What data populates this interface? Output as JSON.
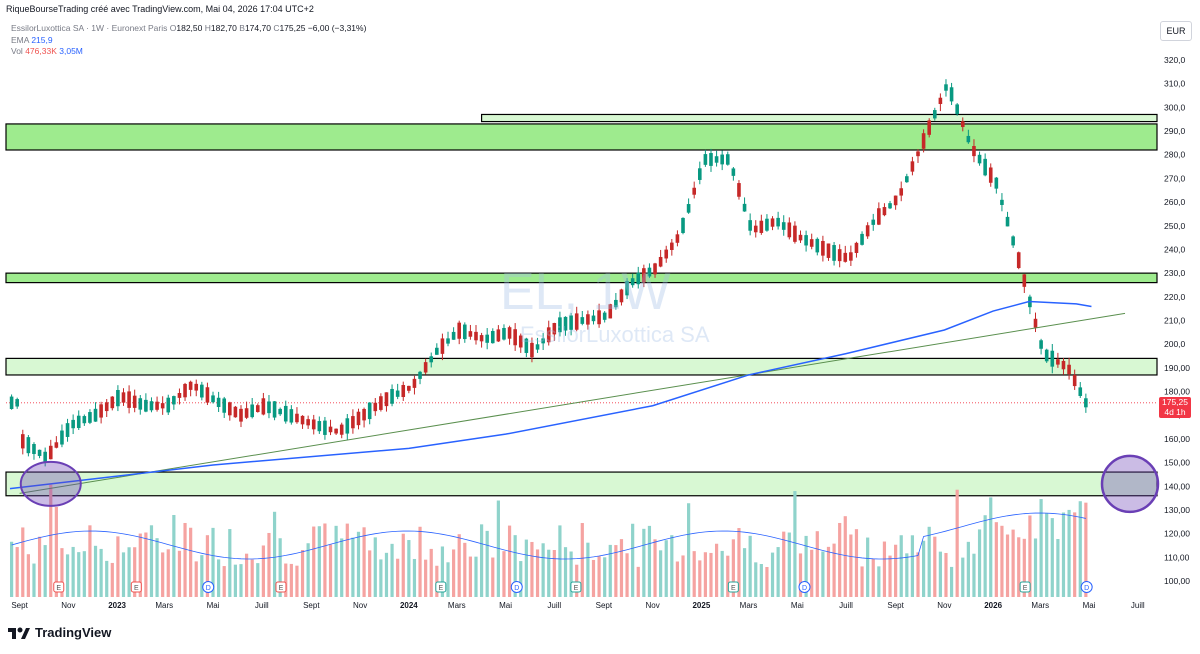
{
  "header": {
    "publisher": "RiqueBourseTrading créé avec TradingView.com, Mai 04, 2026 17:04 UTC+2",
    "instrument": "EssilorLuxottica SA · 1W · Euronext Paris",
    "ohlc": {
      "o_label": "O",
      "o": "182,50",
      "h_label": "H",
      "h": "182,70",
      "b_label": "B",
      "b": "174,70",
      "c_label": "C",
      "c": "175,25",
      "change": "−6,00 (−3,31%)"
    },
    "ema_label": "EMA",
    "ema_value": "215,9",
    "vol_label": "Vol",
    "vol_value": "476,33K",
    "vol_ma": "3,05M"
  },
  "currency": "EUR",
  "watermark": {
    "symbol": "EL, 1W",
    "name": "EssilorLuxottica SA"
  },
  "last_price": {
    "value": "175,25",
    "countdown": "4d 1h"
  },
  "footer_brand": "TradingView",
  "colors": {
    "up": "#26a69a",
    "down": "#ef5350",
    "ema": "#2962ff",
    "zone_fill": "#c8f5c0",
    "bright_zone": "#8de87a",
    "circle": "#6a3fb5"
  },
  "chart_data": {
    "type": "candlestick",
    "interval": "1W",
    "y_axis_ticks": [
      "100,00",
      "110,00",
      "120,00",
      "130,00",
      "140,00",
      "150,00",
      "160,00",
      "170,00",
      "180,00",
      "190,00",
      "200,0",
      "210,0",
      "220,0",
      "230,0",
      "240,0",
      "250,0",
      "260,0",
      "270,0",
      "280,0",
      "290,0",
      "300,0",
      "310,0",
      "320,0"
    ],
    "x_axis_labels": [
      "Sept",
      "Nov",
      "2023",
      "Mars",
      "Mai",
      "Juill",
      "Sept",
      "Nov",
      "2024",
      "Mars",
      "Mai",
      "Juill",
      "Sept",
      "Nov",
      "2025",
      "Mars",
      "Mai",
      "Juill",
      "Sept",
      "Nov",
      "2026",
      "Mars",
      "Mai",
      "Juill"
    ],
    "ylim": [
      96,
      325
    ],
    "zones": [
      {
        "low": 136,
        "high": 146
      },
      {
        "low": 187,
        "high": 194
      },
      {
        "low": 226,
        "high": 230
      },
      {
        "low": 282,
        "high": 293
      },
      {
        "low": 294,
        "high": 297
      }
    ],
    "trendline": {
      "from_date": "2022-09-01",
      "from_price": 137,
      "to_date": "2026-06-15",
      "to_price": 213
    },
    "ema_line": [
      [
        "2022-08-20",
        139
      ],
      [
        "2023-05-01",
        149
      ],
      [
        "2024-01-01",
        156
      ],
      [
        "2024-05-01",
        162
      ],
      [
        "2024-11-01",
        174
      ],
      [
        "2025-03-01",
        187
      ],
      [
        "2025-07-01",
        196
      ],
      [
        "2025-11-01",
        206
      ],
      [
        "2026-01-01",
        214
      ],
      [
        "2026-02-15",
        218
      ],
      [
        "2026-04-15",
        217
      ],
      [
        "2026-05-04",
        215.9
      ]
    ],
    "candles": [
      [
        "2022-09-05",
        158,
        163,
        155,
        159
      ],
      [
        "2022-10-05",
        150,
        157,
        142,
        152
      ],
      [
        "2022-11-05",
        158,
        170,
        155,
        166
      ],
      [
        "2022-12-05",
        168,
        177,
        163,
        170
      ],
      [
        "2023-01-05",
        170,
        180,
        167,
        178
      ],
      [
        "2023-02-05",
        176,
        183,
        170,
        174
      ],
      [
        "2023-03-05",
        172,
        178,
        165,
        174
      ],
      [
        "2023-04-05",
        175,
        186,
        172,
        183
      ],
      [
        "2023-05-05",
        180,
        183,
        172,
        176
      ],
      [
        "2023-06-05",
        175,
        178,
        166,
        170
      ],
      [
        "2023-07-05",
        170,
        176,
        165,
        174
      ],
      [
        "2023-08-05",
        174,
        178,
        168,
        170
      ],
      [
        "2023-09-05",
        170,
        174,
        163,
        166
      ],
      [
        "2023-10-05",
        165,
        168,
        158,
        163
      ],
      [
        "2023-11-05",
        164,
        172,
        160,
        170
      ],
      [
        "2023-12-05",
        172,
        180,
        169,
        177
      ],
      [
        "2024-01-05",
        177,
        186,
        174,
        182
      ],
      [
        "2024-02-05",
        185,
        200,
        183,
        197
      ],
      [
        "2024-03-05",
        200,
        210,
        196,
        206
      ],
      [
        "2024-04-05",
        205,
        208,
        198,
        202
      ],
      [
        "2024-05-05",
        202,
        208,
        198,
        205
      ],
      [
        "2024-06-05",
        205,
        210,
        188,
        197
      ],
      [
        "2024-07-05",
        200,
        211,
        198,
        208
      ],
      [
        "2024-08-05",
        208,
        214,
        204,
        210
      ],
      [
        "2024-09-05",
        210,
        216,
        205,
        212
      ],
      [
        "2024-10-05",
        212,
        228,
        210,
        226
      ],
      [
        "2024-11-05",
        228,
        236,
        226,
        232
      ],
      [
        "2024-12-05",
        232,
        248,
        230,
        246
      ],
      [
        "2025-01-05",
        248,
        282,
        245,
        278
      ],
      [
        "2025-02-05",
        280,
        297,
        272,
        278
      ],
      [
        "2025-03-05",
        276,
        280,
        240,
        248
      ],
      [
        "2025-04-05",
        248,
        262,
        226,
        252
      ],
      [
        "2025-05-05",
        252,
        263,
        240,
        245
      ],
      [
        "2025-06-05",
        245,
        250,
        234,
        240
      ],
      [
        "2025-07-05",
        240,
        248,
        233,
        236
      ],
      [
        "2025-08-05",
        236,
        256,
        234,
        252
      ],
      [
        "2025-09-05",
        254,
        268,
        250,
        262
      ],
      [
        "2025-10-05",
        262,
        290,
        260,
        285
      ],
      [
        "2025-11-05",
        298,
        322,
        286,
        310
      ],
      [
        "2025-12-05",
        310,
        314,
        278,
        283
      ],
      [
        "2026-01-05",
        283,
        287,
        262,
        268
      ],
      [
        "2026-02-05",
        265,
        275,
        226,
        232
      ],
      [
        "2026-03-05",
        218,
        222,
        189,
        196
      ],
      [
        "2026-04-05",
        196,
        214,
        184,
        190
      ],
      [
        "2026-04-27",
        182.5,
        182.7,
        174.7,
        175.25
      ]
    ]
  }
}
